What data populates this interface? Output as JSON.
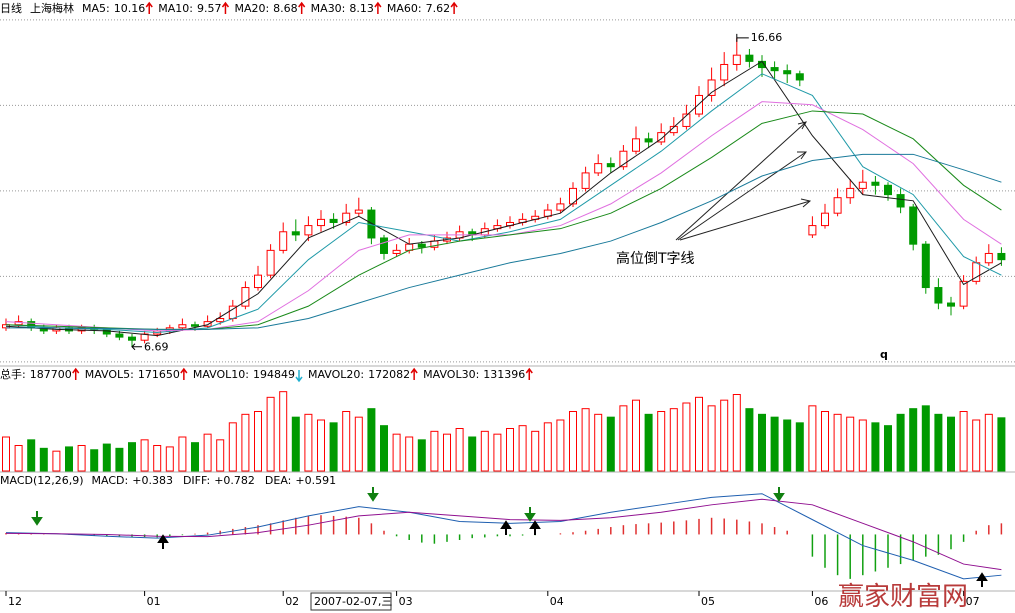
{
  "chart_data": {
    "type": "candlestick",
    "header": {
      "period": "日线",
      "stock": "上海梅林"
    },
    "ylim": [
      6.1,
      17.3
    ],
    "ygrid": [
      6.2,
      8.96,
      11.72,
      14.48,
      17.24
    ],
    "up_color": "#ff0000",
    "down_color": "#009a00",
    "categories": [
      "12",
      null,
      null,
      null,
      null,
      null,
      null,
      null,
      null,
      null,
      null,
      "01",
      null,
      null,
      null,
      null,
      null,
      null,
      null,
      null,
      null,
      null,
      "02",
      null,
      null,
      null,
      null,
      null,
      null,
      null,
      null,
      "03",
      null,
      null,
      null,
      null,
      null,
      null,
      null,
      null,
      null,
      null,
      null,
      "04",
      null,
      null,
      null,
      null,
      null,
      null,
      null,
      null,
      null,
      null,
      null,
      "05",
      null,
      null,
      null,
      null,
      null,
      null,
      null,
      null,
      "06",
      null,
      null,
      null,
      null,
      null,
      null,
      null,
      null,
      null,
      null,
      null,
      "07",
      null,
      null,
      null
    ],
    "open": [
      7.3,
      7.4,
      7.5,
      7.3,
      7.2,
      7.3,
      7.2,
      7.3,
      7.25,
      7.1,
      7.0,
      6.9,
      7.1,
      7.2,
      7.3,
      7.4,
      7.35,
      7.5,
      7.6,
      8.0,
      8.6,
      9.0,
      9.8,
      10.4,
      10.3,
      10.6,
      10.8,
      10.7,
      11.0,
      11.1,
      10.2,
      9.7,
      9.8,
      10.0,
      9.9,
      10.1,
      10.2,
      10.4,
      10.3,
      10.5,
      10.6,
      10.7,
      10.8,
      10.9,
      11.1,
      11.3,
      11.8,
      12.3,
      12.6,
      12.5,
      13.0,
      13.4,
      13.3,
      13.6,
      13.8,
      14.2,
      14.8,
      15.3,
      15.8,
      16.1,
      15.9,
      15.7,
      15.6,
      15.5,
      10.3,
      10.6,
      11.0,
      11.5,
      11.8,
      12.0,
      11.9,
      11.6,
      11.2,
      10.0,
      8.6,
      8.1,
      8.0,
      8.8,
      9.4,
      9.7
    ],
    "high": [
      7.6,
      7.7,
      7.6,
      7.4,
      7.4,
      7.4,
      7.4,
      7.4,
      7.3,
      7.2,
      7.1,
      7.2,
      7.3,
      7.4,
      7.6,
      7.5,
      7.7,
      7.8,
      8.2,
      8.8,
      9.3,
      10.0,
      10.7,
      10.8,
      10.9,
      11.1,
      11.0,
      11.3,
      11.5,
      11.2,
      10.3,
      10.0,
      10.2,
      10.1,
      10.3,
      10.4,
      10.6,
      10.5,
      10.7,
      10.8,
      10.9,
      11.0,
      11.1,
      11.3,
      11.5,
      12.0,
      12.5,
      12.9,
      12.8,
      13.2,
      13.8,
      13.6,
      13.9,
      14.1,
      14.5,
      15.1,
      15.7,
      16.2,
      16.66,
      16.3,
      16.1,
      15.9,
      15.8,
      15.6,
      10.9,
      11.3,
      11.8,
      12.1,
      12.4,
      12.2,
      12.0,
      11.8,
      11.3,
      10.1,
      8.9,
      8.3,
      9.0,
      9.6,
      10.0,
      9.9
    ],
    "low": [
      7.2,
      7.3,
      7.2,
      7.1,
      7.1,
      7.1,
      7.1,
      7.1,
      7.0,
      6.9,
      6.69,
      6.8,
      7.0,
      7.1,
      7.2,
      7.2,
      7.3,
      7.4,
      7.5,
      7.9,
      8.5,
      8.9,
      9.7,
      10.1,
      10.1,
      10.4,
      10.5,
      10.6,
      10.9,
      10.0,
      9.5,
      9.6,
      9.7,
      9.7,
      9.8,
      10.0,
      10.1,
      10.1,
      10.2,
      10.4,
      10.5,
      10.6,
      10.7,
      10.8,
      11.0,
      11.2,
      11.7,
      12.2,
      12.3,
      12.4,
      12.9,
      13.1,
      13.2,
      13.5,
      13.7,
      14.1,
      14.6,
      15.1,
      15.6,
      15.7,
      15.4,
      15.3,
      15.2,
      15.1,
      10.2,
      10.5,
      10.9,
      11.3,
      11.6,
      11.6,
      11.4,
      11.0,
      9.8,
      8.4,
      7.9,
      7.7,
      7.9,
      8.7,
      9.3,
      9.3
    ],
    "close": [
      7.4,
      7.5,
      7.3,
      7.2,
      7.3,
      7.2,
      7.3,
      7.25,
      7.1,
      7.0,
      6.9,
      7.1,
      7.2,
      7.3,
      7.4,
      7.35,
      7.5,
      7.6,
      8.0,
      8.6,
      9.0,
      9.8,
      10.4,
      10.3,
      10.6,
      10.8,
      10.7,
      11.0,
      11.1,
      10.2,
      9.7,
      9.8,
      10.0,
      9.9,
      10.1,
      10.2,
      10.4,
      10.3,
      10.5,
      10.6,
      10.7,
      10.8,
      10.9,
      11.1,
      11.3,
      11.8,
      12.3,
      12.6,
      12.5,
      13.0,
      13.4,
      13.3,
      13.6,
      13.8,
      14.2,
      14.8,
      15.3,
      15.8,
      16.1,
      15.9,
      15.7,
      15.6,
      15.5,
      15.3,
      10.6,
      11.0,
      11.5,
      11.8,
      12.0,
      11.9,
      11.6,
      11.2,
      10.0,
      8.6,
      8.1,
      8.0,
      8.8,
      9.4,
      9.7,
      9.5
    ],
    "ma_x": [
      0,
      4,
      8,
      12,
      16,
      20,
      24,
      28,
      32,
      36,
      40,
      44,
      48,
      52,
      56,
      60,
      64,
      68,
      72,
      76,
      79
    ],
    "ma": [
      {
        "name": "MA5:",
        "last": 10.16,
        "trend": "up",
        "color": "#1a1a1a",
        "legend_color": "#008080",
        "values": [
          7.35,
          7.25,
          7.2,
          7.05,
          7.4,
          8.4,
          10.2,
          10.9,
          10.0,
          10.2,
          10.6,
          11.0,
          12.3,
          13.4,
          14.9,
          15.9,
          13.5,
          11.6,
          11.4,
          8.7,
          9.4
        ]
      },
      {
        "name": "MA10:",
        "last": 9.57,
        "trend": "up",
        "color": "#1f9aa8",
        "legend_color": "#800080",
        "values": [
          7.4,
          7.3,
          7.25,
          7.15,
          7.3,
          7.9,
          9.5,
          10.7,
          10.4,
          10.1,
          10.4,
          10.8,
          11.9,
          13.0,
          14.3,
          15.5,
          14.8,
          12.5,
          11.6,
          9.6,
          9.0
        ]
      },
      {
        "name": "MA20:",
        "last": 8.68,
        "trend": "up",
        "color": "#e070e0",
        "legend_color": "#e070e0",
        "values": [
          7.5,
          7.4,
          7.3,
          7.2,
          7.25,
          7.5,
          8.5,
          9.8,
          10.3,
          10.3,
          10.3,
          10.6,
          11.3,
          12.3,
          13.5,
          14.6,
          14.5,
          13.7,
          12.6,
          10.8,
          10.0
        ]
      },
      {
        "name": "MA30:",
        "last": 8.13,
        "trend": "up",
        "color": "#1a8a1a",
        "legend_color": "#1a8a1a",
        "values": [
          7.4,
          7.35,
          7.3,
          7.25,
          7.25,
          7.4,
          8.0,
          9.0,
          9.8,
          10.1,
          10.3,
          10.5,
          11.0,
          11.8,
          12.8,
          13.9,
          14.3,
          14.2,
          13.4,
          11.9,
          11.1
        ]
      },
      {
        "name": "MA60:",
        "last": 7.62,
        "trend": "up",
        "color": "#1a7a9a",
        "legend_color": "#1a7a9a",
        "values": [
          7.3,
          7.3,
          7.28,
          7.25,
          7.25,
          7.3,
          7.6,
          8.1,
          8.6,
          9.0,
          9.4,
          9.7,
          10.1,
          10.7,
          11.4,
          12.2,
          12.7,
          12.9,
          12.9,
          12.4,
          12.0
        ]
      }
    ],
    "annotation": "高位倒T字线",
    "marker_text": "q",
    "volume": {
      "label": "总手:",
      "last": 187700,
      "vlim": [
        0,
        300000
      ],
      "mavol": [
        {
          "name": "MAVOL5:",
          "value": 171650,
          "trend": "up"
        },
        {
          "name": "MAVOL10:",
          "value": 194849,
          "trend": "down"
        },
        {
          "name": "MAVOL20:",
          "value": 172082,
          "trend": "up"
        },
        {
          "name": "MAVOL30:",
          "value": 131396,
          "trend": "up"
        }
      ],
      "values": [
        120000,
        90000,
        110000,
        80000,
        70000,
        85000,
        90000,
        75000,
        95000,
        80000,
        100000,
        110000,
        90000,
        85000,
        120000,
        100000,
        130000,
        110000,
        170000,
        200000,
        210000,
        260000,
        280000,
        190000,
        200000,
        180000,
        170000,
        210000,
        190000,
        220000,
        160000,
        130000,
        120000,
        110000,
        140000,
        130000,
        150000,
        120000,
        140000,
        130000,
        150000,
        160000,
        140000,
        170000,
        180000,
        210000,
        220000,
        200000,
        190000,
        230000,
        250000,
        200000,
        210000,
        220000,
        240000,
        260000,
        230000,
        250000,
        270000,
        220000,
        200000,
        190000,
        180000,
        170000,
        230000,
        210000,
        200000,
        190000,
        180000,
        170000,
        160000,
        200000,
        220000,
        230000,
        200000,
        190000,
        210000,
        180000,
        200000,
        187700
      ]
    },
    "macd": {
      "title": "MACD(12,26,9)",
      "mlim": [
        -1.5,
        1.2
      ],
      "items": [
        {
          "name": "MACD:",
          "value": 0.383,
          "value_label": "+0.383",
          "color": "#c02020"
        },
        {
          "name": "DIFF:",
          "value": 0.782,
          "value_label": "+0.782",
          "color": "#1f5fb0"
        },
        {
          "name": "DEA:",
          "value": 0.591,
          "value_label": "+0.591",
          "color": "#901090"
        }
      ],
      "diff": [
        0.05,
        0.02,
        -0.05,
        -0.1,
        -0.02,
        0.2,
        0.5,
        0.75,
        0.6,
        0.35,
        0.3,
        0.35,
        0.6,
        0.8,
        1.0,
        1.1,
        0.4,
        -0.3,
        -0.7,
        -1.2,
        -1.1
      ],
      "dea": [
        0.03,
        0.02,
        0.0,
        -0.05,
        -0.06,
        0.05,
        0.25,
        0.5,
        0.6,
        0.5,
        0.4,
        0.38,
        0.45,
        0.6,
        0.8,
        0.95,
        0.8,
        0.3,
        -0.2,
        -0.8,
        -0.95
      ],
      "hist": [
        0.04,
        0.03,
        0.02,
        0.01,
        0.0,
        -0.01,
        -0.02,
        -0.03,
        -0.04,
        -0.05,
        -0.06,
        -0.07,
        -0.08,
        -0.05,
        -0.02,
        0.02,
        0.05,
        0.1,
        0.15,
        0.2,
        0.25,
        0.3,
        0.38,
        0.45,
        0.5,
        0.52,
        0.5,
        0.48,
        0.45,
        0.3,
        0.1,
        -0.05,
        -0.15,
        -0.22,
        -0.25,
        -0.2,
        -0.15,
        -0.1,
        -0.08,
        -0.05,
        -0.05,
        -0.03,
        -0.02,
        0.0,
        0.03,
        0.06,
        0.1,
        0.15,
        0.2,
        0.25,
        0.28,
        0.3,
        0.32,
        0.35,
        0.38,
        0.42,
        0.45,
        0.43,
        0.4,
        0.35,
        0.3,
        0.2,
        0.1,
        0.0,
        -0.6,
        -0.9,
        -1.1,
        -1.2,
        -1.1,
        -1.0,
        -0.9,
        -0.8,
        -0.7,
        -0.6,
        -0.55,
        -0.4,
        -0.2,
        0.1,
        0.25,
        0.3
      ]
    },
    "cursor_date": "2007-02-07,三",
    "watermark": "赢家财富网"
  }
}
